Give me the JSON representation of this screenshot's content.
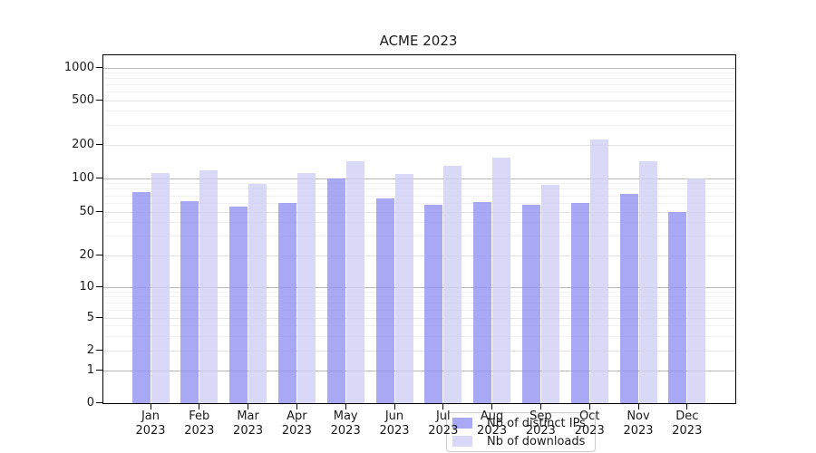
{
  "figure": {
    "background": "#ffffff"
  },
  "chart_data": {
    "type": "bar",
    "title": "ACME 2023",
    "categories": [
      "Jan 2023",
      "Feb 2023",
      "Mar 2023",
      "Apr 2023",
      "May 2023",
      "Jun 2023",
      "Jul 2023",
      "Aug 2023",
      "Sep 2023",
      "Oct 2023",
      "Nov 2023",
      "Dec 2023"
    ],
    "series": [
      {
        "name": "Nb of distinct IPs",
        "color": "rgba(146,146,243,0.8)",
        "values": [
          75,
          63,
          56,
          60,
          100,
          66,
          58,
          61,
          58,
          60,
          73,
          50
        ]
      },
      {
        "name": "Nb of downloads",
        "color": "rgba(208,208,245,0.8)",
        "values": [
          112,
          119,
          90,
          112,
          142,
          110,
          131,
          153,
          88,
          225,
          142,
          100
        ]
      }
    ],
    "y_axis": {
      "scale": "log-with-zero-baseline",
      "ticks": [
        0,
        1,
        2,
        5,
        10,
        20,
        50,
        100,
        200,
        500,
        1000
      ],
      "ylim": [
        0,
        1400
      ]
    },
    "grid": true,
    "legend_position": "lower center inside plot"
  },
  "colors": {
    "grid_major": "#b9b9b9",
    "grid_mid": "#e4e4e4",
    "grid_minor": "#f1f1f1",
    "spine": "#000000",
    "text": "#1a1a1a",
    "legend_border": "#cccccc",
    "legend_background": "rgba(255,255,255,0.8)"
  }
}
